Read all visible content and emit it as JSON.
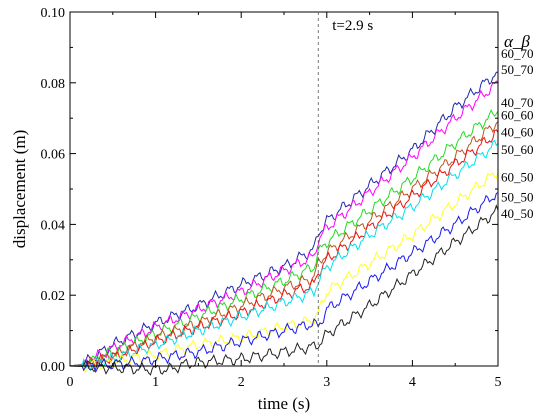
{
  "chart_data": {
    "type": "line",
    "xlabel": "time (s)",
    "ylabel": "displacement (m)",
    "xlim": [
      0,
      5
    ],
    "ylim": [
      0,
      0.1
    ],
    "xticks": [
      "0",
      "1",
      "2",
      "3",
      "4",
      "5"
    ],
    "yticks": [
      "0.00",
      "0.02",
      "0.04",
      "0.06",
      "0.08",
      "0.10"
    ],
    "grid": false,
    "legend_title": "α_β",
    "annotation": {
      "text": "t=2.9 s",
      "x": 2.9
    },
    "series": [
      {
        "name": "60_70",
        "color": "#1f2aa8",
        "x": [
          0,
          0.15,
          0.5,
          1.0,
          1.5,
          2.0,
          2.5,
          2.85,
          2.9,
          3.0,
          3.5,
          4.0,
          4.5,
          5.0
        ],
        "values": [
          0,
          0.0005,
          0.006,
          0.012,
          0.017,
          0.023,
          0.028,
          0.033,
          0.0375,
          0.041,
          0.051,
          0.061,
          0.073,
          0.083
        ]
      },
      {
        "name": "50_70",
        "color": "#ff00ff",
        "x": [
          0,
          0.15,
          0.5,
          1.0,
          1.5,
          2.0,
          2.5,
          2.85,
          2.9,
          3.0,
          3.5,
          4.0,
          4.5,
          5.0
        ],
        "values": [
          0,
          0.0005,
          0.005,
          0.011,
          0.016,
          0.021,
          0.027,
          0.031,
          0.0355,
          0.039,
          0.049,
          0.059,
          0.07,
          0.08
        ]
      },
      {
        "name": "40_70",
        "color": "#22dd22",
        "x": [
          0,
          0.15,
          0.5,
          1.0,
          1.5,
          2.0,
          2.5,
          2.85,
          2.9,
          3.0,
          3.5,
          4.0,
          4.5,
          5.0
        ],
        "values": [
          0,
          0.0004,
          0.004,
          0.009,
          0.014,
          0.019,
          0.024,
          0.028,
          0.032,
          0.035,
          0.044,
          0.053,
          0.063,
          0.072
        ]
      },
      {
        "name": "60_60",
        "color": "#bb5522",
        "x": [
          0,
          0.2,
          0.5,
          1.0,
          1.5,
          2.0,
          2.5,
          2.85,
          2.9,
          3.0,
          3.5,
          4.0,
          4.5,
          5.0
        ],
        "values": [
          0,
          0.0003,
          0.003,
          0.008,
          0.012,
          0.017,
          0.022,
          0.025,
          0.029,
          0.032,
          0.041,
          0.05,
          0.059,
          0.069
        ]
      },
      {
        "name": "40_60",
        "color": "#ee1111",
        "x": [
          0,
          0.2,
          0.5,
          1.0,
          1.5,
          2.0,
          2.5,
          2.85,
          2.9,
          3.0,
          3.5,
          4.0,
          4.5,
          5.0
        ],
        "values": [
          0,
          0.0003,
          0.0025,
          0.007,
          0.011,
          0.015,
          0.02,
          0.023,
          0.0265,
          0.03,
          0.039,
          0.048,
          0.057,
          0.066
        ]
      },
      {
        "name": "50_60",
        "color": "#00e0ee",
        "x": [
          0,
          0.2,
          0.5,
          1.0,
          1.5,
          2.0,
          2.5,
          2.85,
          2.9,
          3.0,
          3.5,
          4.0,
          4.5,
          5.0
        ],
        "values": [
          0,
          0.0002,
          0.002,
          0.006,
          0.01,
          0.014,
          0.018,
          0.021,
          0.024,
          0.028,
          0.037,
          0.045,
          0.054,
          0.063
        ]
      },
      {
        "name": "60_50",
        "color": "#ffff22",
        "x": [
          0,
          0.3,
          0.7,
          1.0,
          1.5,
          2.0,
          2.5,
          2.85,
          2.9,
          3.0,
          3.5,
          4.0,
          4.5,
          5.0
        ],
        "values": [
          0,
          0.0002,
          0.002,
          0.003,
          0.006,
          0.008,
          0.011,
          0.013,
          0.015,
          0.021,
          0.029,
          0.037,
          0.046,
          0.055
        ]
      },
      {
        "name": "50_50",
        "color": "#1a1aee",
        "x": [
          0,
          0.3,
          0.8,
          1.0,
          1.5,
          2.0,
          2.5,
          2.85,
          2.9,
          3.0,
          3.5,
          4.0,
          4.5,
          5.0
        ],
        "values": [
          0,
          0.0001,
          0.001,
          0.002,
          0.004,
          0.007,
          0.01,
          0.012,
          0.011,
          0.016,
          0.024,
          0.032,
          0.04,
          0.049
        ]
      },
      {
        "name": "40_50",
        "color": "#222222",
        "x": [
          0,
          0.5,
          1.0,
          1.2,
          1.3,
          1.5,
          2.0,
          2.5,
          2.85,
          2.9,
          3.0,
          3.5,
          4.0,
          4.5,
          5.0
        ],
        "values": [
          0,
          -0.0005,
          -0.001,
          -0.0008,
          0.0003,
          0.001,
          0.002,
          0.004,
          0.0055,
          0.006,
          0.009,
          0.017,
          0.026,
          0.035,
          0.044
        ]
      }
    ]
  }
}
